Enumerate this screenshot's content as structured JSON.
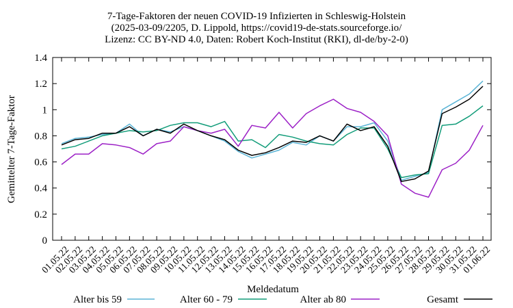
{
  "chart_data": {
    "type": "line",
    "title_lines": [
      "7-Tage-Faktoren der neuen COVID-19 Infizierten in Schleswig-Holstein",
      "(2025-03-09/2205, D. Lippold, https://covid19-de-stats.sourceforge.io/",
      "Lizenz: CC BY-ND 4.0, Daten: Robert Koch-Institut (RKI), dl-de/by-2-0)"
    ],
    "xlabel": "Meldedatum",
    "ylabel": "Gemittelter 7-Tage-Faktor",
    "ylim": [
      0,
      1.4
    ],
    "yticks": [
      0,
      0.2,
      0.4,
      0.6,
      0.8,
      1,
      1.2,
      1.4
    ],
    "ytick_labels": [
      "0",
      "0.2",
      "0.4",
      "0.6",
      "0.8",
      "1",
      "1.2",
      "1.4"
    ],
    "grid": false,
    "legend_position": "bottom",
    "x": [
      "01.05.22",
      "02.05.22",
      "03.05.22",
      "04.05.22",
      "05.05.22",
      "06.05.22",
      "07.05.22",
      "08.05.22",
      "09.05.22",
      "10.05.22",
      "11.05.22",
      "12.05.22",
      "13.05.22",
      "14.05.22",
      "15.05.22",
      "16.05.22",
      "17.05.22",
      "18.05.22",
      "19.05.22",
      "20.05.22",
      "21.05.22",
      "22.05.22",
      "23.05.22",
      "24.05.22",
      "25.05.22",
      "26.05.22",
      "27.05.22",
      "28.05.22",
      "29.05.22",
      "30.05.22",
      "31.05.22",
      "01.06.22"
    ],
    "series": [
      {
        "name": "Alter bis 59",
        "color": "#5ab4d6",
        "values": [
          0.74,
          0.78,
          0.79,
          0.81,
          0.82,
          0.89,
          0.8,
          0.85,
          0.83,
          0.87,
          0.84,
          0.8,
          0.76,
          0.68,
          0.63,
          0.66,
          0.69,
          0.75,
          0.73,
          0.8,
          0.76,
          0.87,
          0.87,
          0.9,
          0.76,
          0.46,
          0.49,
          0.52,
          1.0,
          1.06,
          1.12,
          1.22
        ]
      },
      {
        "name": "Alter 60 - 79",
        "color": "#119c79",
        "values": [
          0.7,
          0.72,
          0.76,
          0.8,
          0.82,
          0.84,
          0.83,
          0.84,
          0.88,
          0.9,
          0.9,
          0.87,
          0.91,
          0.76,
          0.77,
          0.71,
          0.81,
          0.79,
          0.76,
          0.74,
          0.73,
          0.81,
          0.86,
          0.86,
          0.7,
          0.48,
          0.5,
          0.51,
          0.88,
          0.89,
          0.95,
          1.03
        ]
      },
      {
        "name": "Alter ab 80",
        "color": "#9c20c6",
        "values": [
          0.58,
          0.66,
          0.66,
          0.74,
          0.73,
          0.71,
          0.66,
          0.74,
          0.76,
          0.87,
          0.84,
          0.82,
          0.85,
          0.72,
          0.88,
          0.86,
          0.98,
          0.86,
          0.97,
          1.03,
          1.08,
          1.01,
          0.98,
          0.91,
          0.8,
          0.43,
          0.36,
          0.33,
          0.54,
          0.59,
          0.69,
          0.88
        ]
      },
      {
        "name": "Gesamt",
        "color": "#000000",
        "values": [
          0.73,
          0.77,
          0.78,
          0.82,
          0.82,
          0.87,
          0.8,
          0.85,
          0.82,
          0.89,
          0.84,
          0.8,
          0.77,
          0.69,
          0.65,
          0.67,
          0.71,
          0.76,
          0.75,
          0.8,
          0.76,
          0.89,
          0.84,
          0.87,
          0.72,
          0.45,
          0.47,
          0.53,
          0.97,
          1.02,
          1.08,
          1.18
        ]
      }
    ]
  }
}
